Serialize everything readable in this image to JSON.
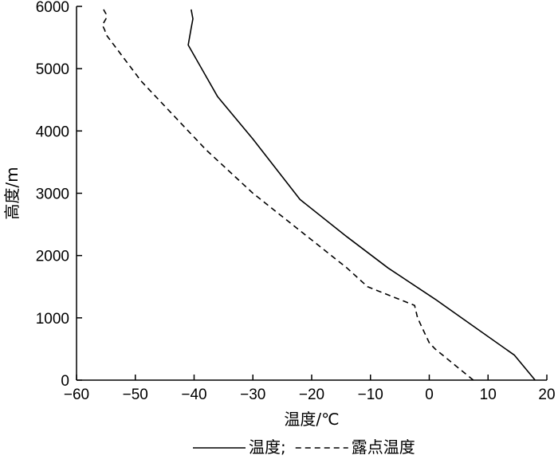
{
  "chart_data": {
    "type": "line",
    "xlabel": "温度/℃",
    "ylabel": "高度/m",
    "xlim": [
      -60,
      20
    ],
    "ylim": [
      0,
      6000
    ],
    "xticks": [
      -60,
      -50,
      -40,
      -30,
      -20,
      -10,
      0,
      10,
      20
    ],
    "yticks": [
      0,
      1000,
      2000,
      3000,
      4000,
      5000,
      6000
    ],
    "grid": false,
    "legend_position": "bottom",
    "series": [
      {
        "name": "温度;",
        "style": "solid",
        "color": "#000000",
        "points": [
          [
            18,
            0
          ],
          [
            14.5,
            400
          ],
          [
            8.5,
            800
          ],
          [
            1,
            1300
          ],
          [
            -7,
            1800
          ],
          [
            -14,
            2300
          ],
          [
            -22,
            2900
          ],
          [
            -30,
            3870
          ],
          [
            -36,
            4550
          ],
          [
            -41,
            5380
          ],
          [
            -40.5,
            5650
          ],
          [
            -40.2,
            5800
          ],
          [
            -40.5,
            5950
          ]
        ]
      },
      {
        "name": "露点温度",
        "style": "dashed",
        "color": "#000000",
        "points": [
          [
            7.5,
            0
          ],
          [
            1,
            500
          ],
          [
            0,
            600
          ],
          [
            -1,
            800
          ],
          [
            -2,
            1000
          ],
          [
            -2.5,
            1200
          ],
          [
            -6.5,
            1350
          ],
          [
            -10.5,
            1500
          ],
          [
            -14,
            1800
          ],
          [
            -22,
            2400
          ],
          [
            -30,
            3000
          ],
          [
            -38,
            3700
          ],
          [
            -44,
            4300
          ],
          [
            -49,
            4800
          ],
          [
            -55,
            5550
          ],
          [
            -55.2,
            5620
          ],
          [
            -55.6,
            5700
          ],
          [
            -55,
            5800
          ],
          [
            -55,
            5880
          ],
          [
            -55.4,
            5950
          ]
        ]
      }
    ]
  }
}
